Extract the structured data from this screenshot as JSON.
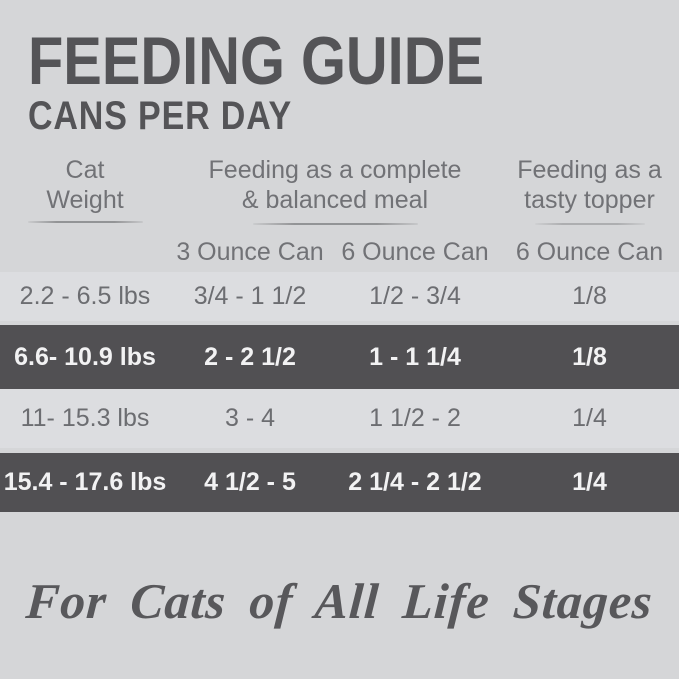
{
  "title": "FEEDING GUIDE",
  "subtitle": "CANS PER DAY",
  "table": {
    "column_groups": [
      {
        "label": "Cat Weight"
      },
      {
        "label": "Feeding as a complete & balanced meal"
      },
      {
        "label": "Feeding as a tasty topper"
      }
    ],
    "sub_headers": {
      "meal_can_3oz": "3 Ounce Can",
      "meal_can_6oz": "6 Ounce Can",
      "topper_can_6oz": "6 Ounce Can"
    },
    "rows": [
      {
        "weight": "2.2 - 6.5 lbs",
        "can3": "3/4 - 1 1/2",
        "can6_meal": "1/2 - 3/4",
        "can6_topper": "1/8",
        "highlighted": false
      },
      {
        "weight": "6.6- 10.9 lbs",
        "can3": "2 - 2 1/2",
        "can6_meal": "1 - 1 1/4",
        "can6_topper": "1/8",
        "highlighted": true
      },
      {
        "weight": "11- 15.3 lbs",
        "can3": "3 - 4",
        "can6_meal": "1 1/2 - 2",
        "can6_topper": "1/4",
        "highlighted": false
      },
      {
        "weight": "15.4 - 17.6 lbs",
        "can3": "4 1/2 - 5",
        "can6_meal": "2 1/4 - 2 1/2",
        "can6_topper": "1/4",
        "highlighted": true
      }
    ]
  },
  "footer": {
    "tagline": "For Cats of All Life Stages"
  },
  "colors": {
    "background": "#d5d6d8",
    "row_band_light": "#dcdde0",
    "row_band_dark": "#515053",
    "title_text": "#545457",
    "header_text": "#717276",
    "body_text": "#6c6d71",
    "inverse_text": "#f2f2f3",
    "script_text": "#58585b"
  }
}
